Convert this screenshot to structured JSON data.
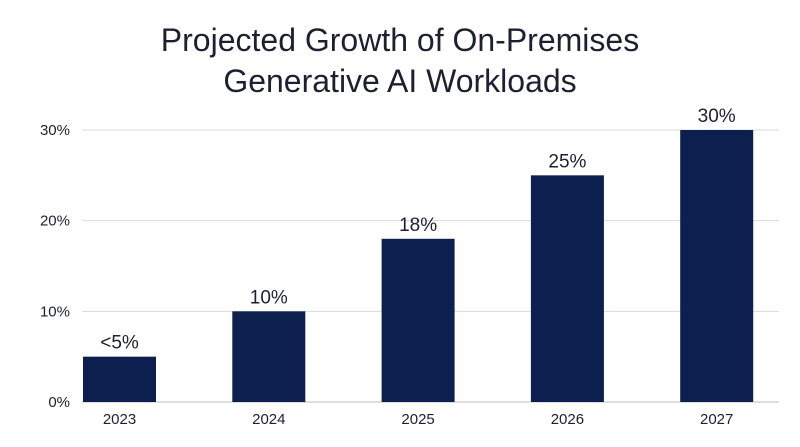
{
  "chart_data": {
    "type": "bar",
    "title_lines": [
      "Projected Growth of On-Premises",
      "Generative AI Workloads"
    ],
    "categories": [
      "2023",
      "2024",
      "2025",
      "2026",
      "2027"
    ],
    "values": [
      5,
      10,
      18,
      25,
      30
    ],
    "data_labels": [
      "<5%",
      "10%",
      "18%",
      "25%",
      "30%"
    ],
    "xlabel": "",
    "ylabel": "",
    "ylim": [
      0,
      30
    ],
    "yticks": [
      0,
      10,
      20,
      30
    ],
    "ytick_labels": [
      "0%",
      "10%",
      "20%",
      "30%"
    ],
    "grid": true,
    "bar_color": "#0c1f4f",
    "grid_color": "#d9d9d9"
  }
}
